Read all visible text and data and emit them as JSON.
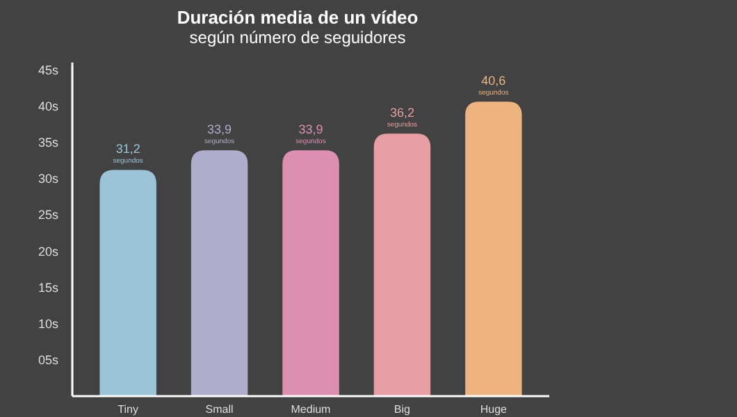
{
  "chart_data": {
    "type": "bar",
    "title": "Duración media de un vídeo",
    "subtitle": "según número de seguidores",
    "categories": [
      "Tiny",
      "Small",
      "Medium",
      "Big",
      "Huge"
    ],
    "values": [
      31.2,
      33.9,
      33.9,
      36.2,
      40.6
    ],
    "colors": [
      "#9cc4d9",
      "#aeaecc",
      "#dc8fb1",
      "#e69ea2",
      "#eeb47f"
    ],
    "value_labels": [
      "31,2\nsegundos",
      "33,9\nsegundos",
      "33,9\nsegundos",
      "36,2\nsegundos",
      "40,6\nsegundos"
    ],
    "ylim": [
      0,
      46
    ],
    "yticks": [
      {
        "value": 5,
        "label": "05s"
      },
      {
        "value": 10,
        "label": "10s"
      },
      {
        "value": 15,
        "label": "15s"
      },
      {
        "value": 20,
        "label": "20s"
      },
      {
        "value": 25,
        "label": "25s"
      },
      {
        "value": 30,
        "label": "30s"
      },
      {
        "value": 35,
        "label": "35s"
      },
      {
        "value": 40,
        "label": "40s"
      },
      {
        "value": 45,
        "label": "45s"
      }
    ],
    "grid": false
  }
}
